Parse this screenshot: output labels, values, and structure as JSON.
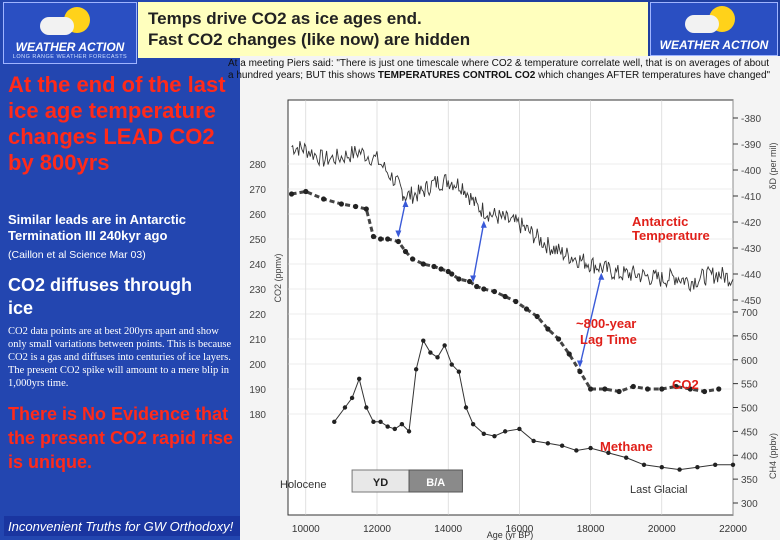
{
  "header": {
    "title": "Temps drive CO2 as ice ages end.\nFast CO2 changes (like now) are hidden",
    "logo_text": "WEATHER ACTION",
    "logo_tagline": "LONG RANGE WEATHER FORECASTS"
  },
  "quote": {
    "before": "At a meeting Piers said: \"There is just one timescale where CO2 & temperature correlate well, that is on averages of about a hundred years; BUT this shows ",
    "bold": "TEMPERATURES CONTROL CO2",
    "after": " which changes AFTER temperatures have changed\""
  },
  "left_panel": {
    "headline": "At the end of the last ice age temperature changes LEAD CO2 by 800yrs",
    "similar": "Similar leads are in Antarctic Termination III 240kyr ago",
    "citation": "(Caillon et al Science Mar 03)",
    "diffuses": "CO2 diffuses through ice",
    "note": "CO2 data points are at best 200yrs apart and show only small variations between points. This is because CO2 is a gas and diffuses into centuries of ice layers.  The present CO2 spike will amount to a mere blip in 1,000yrs time.",
    "no_evidence": "There is No Evidence that the present CO2 rapid rise is unique.",
    "footer": "Inconvenient Truths for GW Orthodoxy!"
  },
  "colors": {
    "red": "#ff2a1a",
    "yellow_title": "#ffffbe",
    "blue": "#2346b0",
    "annot_red": "#e0201a"
  },
  "chart_data": {
    "type": "line",
    "xlabel": "Age (yr BP)",
    "xlim": [
      9500,
      22000
    ],
    "x_ticks": [
      "10000",
      "12000",
      "14000",
      "16000",
      "18000",
      "20000",
      "22000"
    ],
    "x_tick_values": [
      10000,
      12000,
      14000,
      16000,
      18000,
      20000,
      22000
    ],
    "co2_axis": {
      "label": "CO2 (ppmv)",
      "ticks": [
        "280",
        "270",
        "260",
        "250",
        "240",
        "230",
        "220",
        "210",
        "200",
        "190",
        "180"
      ],
      "range": [
        177,
        290
      ]
    },
    "temp_axis": {
      "label": "δD (per mil)",
      "ticks": [
        "-380",
        "-390",
        "-400",
        "-410",
        "-420",
        "-430",
        "-440",
        "-450"
      ]
    },
    "ch4_axis": {
      "label": "CH4 (ppbv)",
      "ticks": [
        "700",
        "650",
        "600",
        "550",
        "500",
        "450",
        "400",
        "350",
        "300"
      ]
    },
    "labels": {
      "temperature": "Antarctic Temperature",
      "lag": "~800-year Lag Time",
      "co2": "CO2",
      "methane": "Methane",
      "holocene": "Holocene",
      "yd": "YD",
      "ba": "B/A",
      "last_glacial": "Last Glacial"
    },
    "series": [
      {
        "name": "Antarctic Temperature",
        "x": [
          9600,
          10000,
          10500,
          11000,
          11500,
          12000,
          12500,
          12800,
          13200,
          13600,
          14000,
          14400,
          14800,
          15200,
          15600,
          16000,
          16400,
          16800,
          17200,
          17600,
          18000,
          18400,
          18800,
          19200,
          19600,
          20000,
          20400,
          20800,
          21200,
          21600,
          22000
        ],
        "y": [
          -391,
          -392,
          -396,
          -395,
          -393,
          -396,
          -404,
          -410,
          -409,
          -405,
          -404,
          -406,
          -414,
          -417,
          -419,
          -421,
          -425,
          -429,
          -432,
          -434,
          -436,
          -438,
          -440,
          -440,
          -441,
          -442,
          -441,
          -443,
          -441,
          -440,
          -442
        ]
      },
      {
        "name": "CO2",
        "x": [
          9600,
          10000,
          10500,
          11000,
          11400,
          11700,
          11900,
          12100,
          12300,
          12600,
          12800,
          13000,
          13300,
          13600,
          13800,
          14000,
          14100,
          14300,
          14600,
          14800,
          15000,
          15300,
          15600,
          15900,
          16200,
          16500,
          16800,
          17100,
          17400,
          17700,
          18000,
          18400,
          18800,
          19200,
          19600,
          20000,
          20400,
          20800,
          21200,
          21600
        ],
        "y": [
          268,
          269,
          266,
          264,
          263,
          262,
          251,
          250,
          250,
          249,
          245,
          242,
          240,
          239,
          238,
          237,
          236,
          234,
          233,
          231,
          230,
          229,
          227,
          225,
          222,
          219,
          214,
          210,
          204,
          197,
          190,
          190,
          189,
          191,
          190,
          190,
          191,
          190,
          189,
          190
        ]
      },
      {
        "name": "Methane",
        "x": [
          10800,
          11100,
          11300,
          11500,
          11700,
          11900,
          12100,
          12300,
          12500,
          12700,
          12900,
          13100,
          13300,
          13500,
          13700,
          13900,
          14100,
          14300,
          14500,
          14700,
          15000,
          15300,
          15600,
          16000,
          16400,
          16800,
          17200,
          17600,
          18000,
          18500,
          19000,
          19500,
          20000,
          20500,
          21000,
          21500,
          22000
        ],
        "y": [
          470,
          500,
          520,
          560,
          500,
          470,
          470,
          460,
          455,
          465,
          450,
          580,
          640,
          615,
          605,
          630,
          590,
          575,
          500,
          465,
          445,
          440,
          450,
          455,
          430,
          425,
          420,
          410,
          415,
          405,
          395,
          380,
          375,
          370,
          375,
          380,
          380
        ]
      }
    ]
  }
}
